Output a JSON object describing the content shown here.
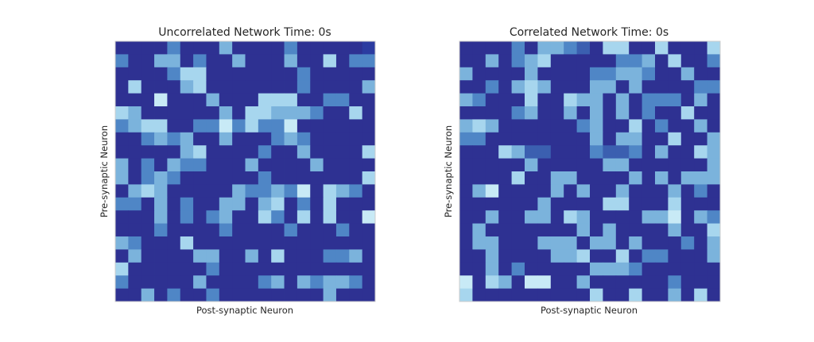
{
  "chart_data": [
    {
      "type": "heatmap",
      "title": "Uncorrelated Network Time: 0s",
      "xlabel": "Post-synaptic Neuron",
      "ylabel": "Pre-synaptic Neuron",
      "rows": 20,
      "cols": 20,
      "colormap": [
        "#2e3192",
        "#2b3ba0",
        "#3b5fb0",
        "#4f86c6",
        "#7bb3dc",
        "#a7d6ee",
        "#c8eaf6"
      ],
      "values": [
        [
          0,
          0,
          0,
          0,
          3,
          0,
          0,
          0,
          4,
          0,
          0,
          0,
          0,
          3,
          0,
          0,
          0,
          0,
          0,
          1
        ],
        [
          3,
          0,
          0,
          4,
          4,
          0,
          3,
          0,
          0,
          4,
          0,
          0,
          0,
          4,
          0,
          0,
          5,
          0,
          3,
          3
        ],
        [
          0,
          0,
          0,
          0,
          3,
          5,
          5,
          0,
          0,
          0,
          0,
          0,
          0,
          0,
          3,
          0,
          0,
          0,
          0,
          0
        ],
        [
          0,
          5,
          0,
          0,
          0,
          4,
          5,
          0,
          0,
          0,
          0,
          0,
          0,
          0,
          3,
          0,
          0,
          0,
          0,
          4
        ],
        [
          0,
          0,
          0,
          6,
          0,
          0,
          0,
          4,
          0,
          0,
          0,
          5,
          5,
          5,
          0,
          0,
          3,
          3,
          0,
          0
        ],
        [
          5,
          4,
          0,
          0,
          0,
          0,
          0,
          0,
          4,
          0,
          5,
          5,
          4,
          4,
          4,
          3,
          0,
          0,
          5,
          0
        ],
        [
          3,
          4,
          5,
          5,
          0,
          0,
          3,
          3,
          6,
          3,
          5,
          3,
          3,
          6,
          0,
          0,
          0,
          0,
          0,
          0
        ],
        [
          0,
          0,
          3,
          4,
          3,
          4,
          0,
          0,
          4,
          0,
          0,
          0,
          3,
          4,
          3,
          0,
          0,
          0,
          0,
          0
        ],
        [
          0,
          0,
          0,
          0,
          0,
          4,
          5,
          0,
          0,
          0,
          0,
          3,
          0,
          0,
          4,
          0,
          0,
          0,
          0,
          5
        ],
        [
          4,
          0,
          3,
          0,
          4,
          3,
          3,
          0,
          0,
          0,
          4,
          0,
          0,
          0,
          0,
          4,
          0,
          0,
          0,
          0
        ],
        [
          4,
          0,
          3,
          4,
          3,
          0,
          0,
          0,
          0,
          0,
          0,
          3,
          0,
          0,
          0,
          0,
          0,
          0,
          0,
          5
        ],
        [
          0,
          4,
          5,
          4,
          0,
          0,
          0,
          0,
          0,
          4,
          3,
          3,
          4,
          3,
          6,
          0,
          5,
          4,
          3,
          0
        ],
        [
          3,
          3,
          0,
          4,
          0,
          3,
          0,
          0,
          4,
          4,
          0,
          4,
          5,
          0,
          3,
          0,
          5,
          0,
          0,
          0
        ],
        [
          0,
          0,
          0,
          4,
          0,
          3,
          0,
          3,
          4,
          0,
          0,
          5,
          3,
          0,
          5,
          0,
          5,
          0,
          0,
          6
        ],
        [
          0,
          0,
          0,
          3,
          0,
          0,
          0,
          0,
          3,
          0,
          0,
          0,
          0,
          3,
          0,
          0,
          0,
          3,
          0,
          0
        ],
        [
          4,
          3,
          0,
          0,
          0,
          5,
          0,
          0,
          0,
          0,
          0,
          0,
          0,
          0,
          0,
          0,
          0,
          0,
          0,
          0
        ],
        [
          0,
          4,
          0,
          0,
          0,
          0,
          4,
          4,
          0,
          0,
          4,
          0,
          5,
          0,
          0,
          0,
          3,
          3,
          4,
          0
        ],
        [
          5,
          0,
          0,
          0,
          0,
          0,
          0,
          3,
          0,
          0,
          0,
          0,
          0,
          0,
          0,
          0,
          0,
          0,
          0,
          0
        ],
        [
          3,
          0,
          0,
          0,
          0,
          0,
          4,
          0,
          0,
          0,
          0,
          3,
          4,
          0,
          4,
          3,
          4,
          4,
          3,
          0
        ],
        [
          0,
          0,
          4,
          0,
          3,
          0,
          0,
          3,
          0,
          0,
          0,
          0,
          0,
          0,
          0,
          0,
          4,
          0,
          0,
          0
        ]
      ]
    },
    {
      "type": "heatmap",
      "title": "Correlated Network Time: 0s",
      "xlabel": "Post-synaptic Neuron",
      "ylabel": "Pre-synaptic Neuron",
      "rows": 20,
      "cols": 20,
      "colormap": [
        "#2e3192",
        "#2b3ba0",
        "#3b5fb0",
        "#4f86c6",
        "#7bb3dc",
        "#a7d6ee",
        "#c8eaf6"
      ],
      "values": [
        [
          0,
          0,
          0,
          0,
          3,
          0,
          4,
          4,
          3,
          2,
          0,
          5,
          5,
          0,
          0,
          5,
          0,
          0,
          0,
          5
        ],
        [
          0,
          0,
          4,
          0,
          3,
          4,
          5,
          0,
          0,
          0,
          0,
          0,
          3,
          3,
          4,
          0,
          5,
          0,
          0,
          3
        ],
        [
          4,
          0,
          0,
          0,
          0,
          4,
          0,
          0,
          0,
          0,
          3,
          3,
          4,
          4,
          3,
          0,
          0,
          4,
          0,
          0
        ],
        [
          0,
          0,
          3,
          0,
          4,
          5,
          4,
          0,
          0,
          0,
          4,
          4,
          0,
          4,
          0,
          0,
          0,
          0,
          3,
          3
        ],
        [
          4,
          3,
          0,
          0,
          0,
          5,
          0,
          0,
          5,
          4,
          4,
          0,
          4,
          0,
          3,
          3,
          3,
          0,
          4,
          0
        ],
        [
          0,
          0,
          0,
          0,
          3,
          4,
          0,
          0,
          4,
          0,
          4,
          0,
          4,
          0,
          3,
          0,
          0,
          5,
          0,
          0
        ],
        [
          4,
          5,
          4,
          0,
          0,
          0,
          0,
          0,
          0,
          3,
          4,
          0,
          0,
          5,
          0,
          3,
          0,
          0,
          4,
          0
        ],
        [
          3,
          3,
          0,
          0,
          0,
          0,
          0,
          0,
          0,
          0,
          4,
          0,
          4,
          4,
          0,
          0,
          5,
          0,
          0,
          4
        ],
        [
          0,
          0,
          0,
          5,
          4,
          2,
          2,
          0,
          0,
          0,
          3,
          2,
          2,
          3,
          0,
          4,
          0,
          0,
          5,
          4
        ],
        [
          0,
          0,
          0,
          0,
          0,
          4,
          0,
          0,
          0,
          0,
          0,
          4,
          4,
          0,
          0,
          0,
          0,
          0,
          0,
          4
        ],
        [
          0,
          0,
          0,
          0,
          5,
          0,
          0,
          4,
          4,
          0,
          0,
          0,
          0,
          4,
          0,
          4,
          0,
          4,
          4,
          4
        ],
        [
          0,
          4,
          6,
          0,
          0,
          0,
          0,
          4,
          0,
          4,
          0,
          0,
          4,
          0,
          0,
          0,
          4,
          0,
          3,
          0
        ],
        [
          0,
          0,
          0,
          0,
          0,
          0,
          4,
          0,
          0,
          0,
          0,
          5,
          5,
          0,
          0,
          0,
          5,
          0,
          0,
          0
        ],
        [
          0,
          0,
          4,
          0,
          0,
          4,
          4,
          0,
          5,
          4,
          0,
          0,
          0,
          0,
          4,
          4,
          6,
          0,
          4,
          3
        ],
        [
          0,
          4,
          0,
          0,
          0,
          0,
          0,
          0,
          0,
          4,
          0,
          4,
          0,
          0,
          0,
          0,
          4,
          0,
          0,
          5
        ],
        [
          0,
          4,
          4,
          0,
          0,
          0,
          4,
          4,
          4,
          0,
          4,
          4,
          0,
          4,
          0,
          0,
          0,
          3,
          0,
          4
        ],
        [
          0,
          0,
          4,
          0,
          0,
          0,
          0,
          4,
          4,
          5,
          0,
          0,
          5,
          0,
          3,
          3,
          0,
          0,
          0,
          4
        ],
        [
          0,
          0,
          4,
          0,
          3,
          0,
          0,
          0,
          0,
          0,
          4,
          4,
          4,
          3,
          0,
          0,
          0,
          0,
          0,
          0
        ],
        [
          6,
          0,
          5,
          4,
          0,
          6,
          6,
          0,
          0,
          4,
          0,
          0,
          0,
          0,
          0,
          0,
          3,
          0,
          0,
          0
        ],
        [
          5,
          0,
          0,
          0,
          0,
          0,
          0,
          0,
          0,
          0,
          5,
          0,
          0,
          5,
          0,
          0,
          4,
          0,
          5,
          0
        ]
      ]
    }
  ]
}
